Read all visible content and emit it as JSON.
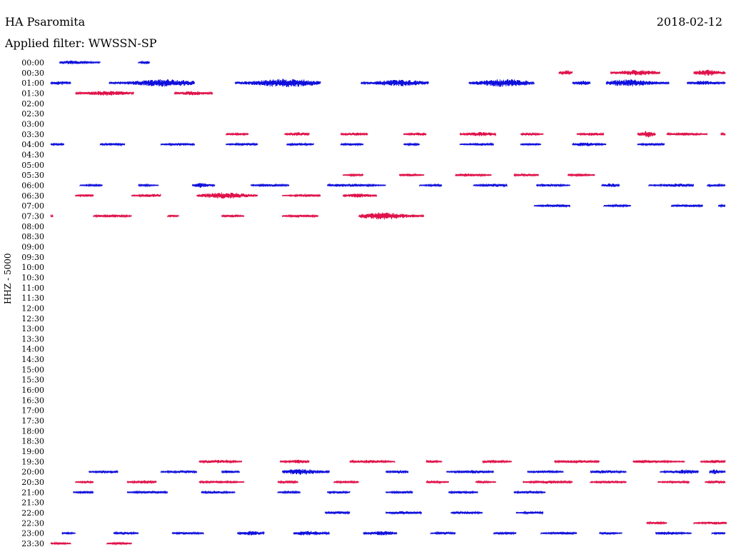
{
  "header": {
    "station": "HA Psaromita",
    "date": "2018-02-12",
    "filter": "Applied filter: WWSSN-SP"
  },
  "colors": {
    "blue": "#1010dd",
    "red": "#e0124a"
  },
  "chart_data": {
    "type": "line",
    "title": "HA Psaromita",
    "subtitle": "Applied filter: WWSSN-SP",
    "ylabel": "HHZ - 5000",
    "xlabel": "",
    "row_labels": [
      "00:00",
      "00:30",
      "01:00",
      "01:30",
      "02:00",
      "02:30",
      "03:00",
      "03:30",
      "04:00",
      "04:30",
      "05:00",
      "05:30",
      "06:00",
      "06:30",
      "07:00",
      "07:30",
      "08:00",
      "08:30",
      "09:00",
      "09:30",
      "10:00",
      "10:30",
      "11:00",
      "11:30",
      "12:00",
      "12:30",
      "13:00",
      "13:30",
      "14:00",
      "14:30",
      "15:00",
      "15:30",
      "16:00",
      "16:30",
      "17:00",
      "17:30",
      "18:00",
      "18:30",
      "19:00",
      "19:30",
      "20:00",
      "20:30",
      "21:00",
      "21:30",
      "22:00",
      "22:30",
      "23:00",
      "23:30"
    ],
    "x_range_minutes": [
      0,
      30
    ],
    "row_colors": [
      "blue",
      "red"
    ],
    "segments": {
      "00:00": [
        [
          0.4,
          2.2,
          0.35
        ],
        [
          3.9,
          4.4,
          0.3
        ]
      ],
      "00:30": [
        [
          22.6,
          23.2,
          0.5
        ],
        [
          24.9,
          27.1,
          0.55
        ],
        [
          28.6,
          30.0,
          0.6
        ]
      ],
      "01:00": [
        [
          0.0,
          0.9,
          0.4
        ],
        [
          2.6,
          6.4,
          0.7
        ],
        [
          8.2,
          12.0,
          0.8
        ],
        [
          13.8,
          16.8,
          0.6
        ],
        [
          18.6,
          21.5,
          0.75
        ],
        [
          23.2,
          24.0,
          0.45
        ],
        [
          24.7,
          27.5,
          0.65
        ],
        [
          28.3,
          30.0,
          0.4
        ]
      ],
      "01:30": [
        [
          1.1,
          3.7,
          0.45
        ],
        [
          5.5,
          7.2,
          0.4
        ]
      ],
      "03:30": [
        [
          7.8,
          8.8,
          0.3
        ],
        [
          10.4,
          11.5,
          0.35
        ],
        [
          12.9,
          14.1,
          0.3
        ],
        [
          15.7,
          16.7,
          0.3
        ],
        [
          18.2,
          19.8,
          0.4
        ],
        [
          20.9,
          21.9,
          0.25
        ],
        [
          23.4,
          24.6,
          0.3
        ],
        [
          26.1,
          26.9,
          0.6
        ],
        [
          27.4,
          29.2,
          0.3
        ],
        [
          29.8,
          30.0,
          0.3
        ]
      ],
      "04:00": [
        [
          0.0,
          0.6,
          0.25
        ],
        [
          2.2,
          3.3,
          0.25
        ],
        [
          4.9,
          6.4,
          0.25
        ],
        [
          7.8,
          9.2,
          0.25
        ],
        [
          10.5,
          11.7,
          0.25
        ],
        [
          12.9,
          13.9,
          0.25
        ],
        [
          15.7,
          16.4,
          0.2
        ],
        [
          18.2,
          19.7,
          0.25
        ],
        [
          20.9,
          21.8,
          0.2
        ],
        [
          23.2,
          24.7,
          0.35
        ],
        [
          26.1,
          27.3,
          0.25
        ]
      ],
      "05:30": [
        [
          13.0,
          13.9,
          0.2
        ],
        [
          15.5,
          16.6,
          0.25
        ],
        [
          18.0,
          19.6,
          0.3
        ],
        [
          20.6,
          21.7,
          0.25
        ],
        [
          23.0,
          24.2,
          0.25
        ]
      ],
      "06:00": [
        [
          1.3,
          2.3,
          0.2
        ],
        [
          3.9,
          4.8,
          0.2
        ],
        [
          6.3,
          7.3,
          0.45
        ],
        [
          8.9,
          10.6,
          0.25
        ],
        [
          12.3,
          14.9,
          0.3
        ],
        [
          16.4,
          17.4,
          0.2
        ],
        [
          18.8,
          20.3,
          0.3
        ],
        [
          21.6,
          23.1,
          0.25
        ],
        [
          24.5,
          25.3,
          0.35
        ],
        [
          26.6,
          28.6,
          0.3
        ],
        [
          29.2,
          30.0,
          0.25
        ]
      ],
      "06:30": [
        [
          1.1,
          1.9,
          0.25
        ],
        [
          3.6,
          4.9,
          0.3
        ],
        [
          6.5,
          9.2,
          0.6
        ],
        [
          10.3,
          12.0,
          0.25
        ],
        [
          13.0,
          14.5,
          0.4
        ]
      ],
      "07:00": [
        [
          21.5,
          23.1,
          0.25
        ],
        [
          24.6,
          25.8,
          0.2
        ],
        [
          27.6,
          29.0,
          0.25
        ],
        [
          29.7,
          30.0,
          0.2
        ]
      ],
      "07:30": [
        [
          0.0,
          0.1,
          0.2
        ],
        [
          1.9,
          3.6,
          0.3
        ],
        [
          5.2,
          5.7,
          0.2
        ],
        [
          7.6,
          8.6,
          0.25
        ],
        [
          10.3,
          11.9,
          0.25
        ],
        [
          13.7,
          16.6,
          0.65
        ]
      ],
      "19:30": [
        [
          6.6,
          8.5,
          0.3
        ],
        [
          10.2,
          11.5,
          0.35
        ],
        [
          13.3,
          15.3,
          0.3
        ],
        [
          16.7,
          17.4,
          0.25
        ],
        [
          19.2,
          20.5,
          0.3
        ],
        [
          22.4,
          24.4,
          0.3
        ],
        [
          25.9,
          28.2,
          0.3
        ],
        [
          28.9,
          30.0,
          0.3
        ]
      ],
      "20:00": [
        [
          1.7,
          3.0,
          0.3
        ],
        [
          4.9,
          6.5,
          0.3
        ],
        [
          7.6,
          8.4,
          0.3
        ],
        [
          10.3,
          12.4,
          0.55
        ],
        [
          14.9,
          15.9,
          0.35
        ],
        [
          17.6,
          19.7,
          0.3
        ],
        [
          21.2,
          22.8,
          0.25
        ],
        [
          24.0,
          25.6,
          0.3
        ],
        [
          27.1,
          28.8,
          0.4
        ],
        [
          29.3,
          30.0,
          0.45
        ]
      ],
      "20:30": [
        [
          1.1,
          1.9,
          0.25
        ],
        [
          3.4,
          4.7,
          0.35
        ],
        [
          6.6,
          8.6,
          0.25
        ],
        [
          10.1,
          11.0,
          0.25
        ],
        [
          12.6,
          13.7,
          0.25
        ],
        [
          16.7,
          17.7,
          0.25
        ],
        [
          18.9,
          19.8,
          0.2
        ],
        [
          21.0,
          23.2,
          0.3
        ],
        [
          24.0,
          25.6,
          0.25
        ],
        [
          27.0,
          28.4,
          0.25
        ],
        [
          29.1,
          30.0,
          0.25
        ]
      ],
      "21:00": [
        [
          1.0,
          1.9,
          0.25
        ],
        [
          3.4,
          5.2,
          0.25
        ],
        [
          6.7,
          8.2,
          0.25
        ],
        [
          10.1,
          11.1,
          0.2
        ],
        [
          12.3,
          13.3,
          0.25
        ],
        [
          14.9,
          16.1,
          0.25
        ],
        [
          17.7,
          19.0,
          0.25
        ],
        [
          20.6,
          22.0,
          0.25
        ]
      ],
      "22:00": [
        [
          12.2,
          13.3,
          0.3
        ],
        [
          14.9,
          16.5,
          0.3
        ],
        [
          17.8,
          19.2,
          0.25
        ],
        [
          20.7,
          21.9,
          0.25
        ]
      ],
      "22:30": [
        [
          26.5,
          27.4,
          0.25
        ],
        [
          28.6,
          30.2,
          0.3
        ]
      ],
      "23:00": [
        [
          0.5,
          1.1,
          0.2
        ],
        [
          2.8,
          3.9,
          0.25
        ],
        [
          5.4,
          6.8,
          0.25
        ],
        [
          8.3,
          9.5,
          0.4
        ],
        [
          10.8,
          12.4,
          0.45
        ],
        [
          13.9,
          15.4,
          0.4
        ],
        [
          16.9,
          18.0,
          0.25
        ],
        [
          19.7,
          20.7,
          0.25
        ],
        [
          21.8,
          23.4,
          0.25
        ],
        [
          24.4,
          25.4,
          0.25
        ],
        [
          26.9,
          28.5,
          0.3
        ],
        [
          29.4,
          30.0,
          0.25
        ]
      ],
      "23:30": [
        [
          0.0,
          0.9,
          0.2
        ],
        [
          2.5,
          3.6,
          0.2
        ]
      ]
    }
  }
}
